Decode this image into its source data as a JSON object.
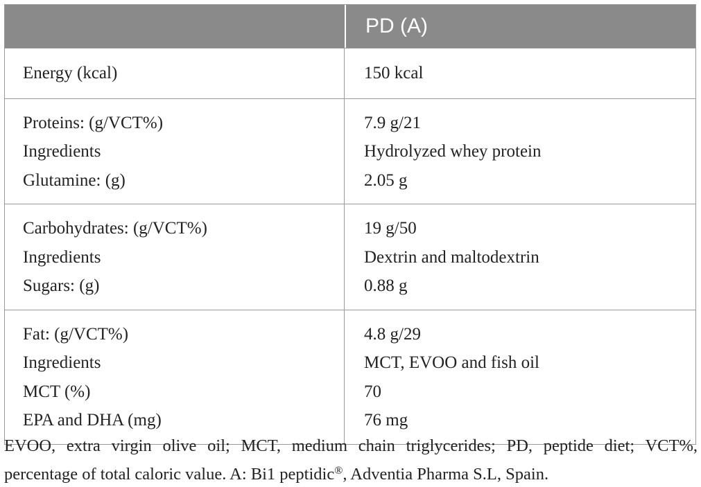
{
  "table": {
    "header": {
      "col1": "",
      "col2": "PD (A)"
    },
    "groups": [
      {
        "rows": [
          {
            "label": "Energy (kcal)",
            "value": "150 kcal"
          }
        ]
      },
      {
        "rows": [
          {
            "label": "Proteins: (g/VCT%)",
            "value": "7.9 g/21"
          },
          {
            "label": "Ingredients",
            "value": "Hydrolyzed whey protein"
          },
          {
            "label": "Glutamine: (g)",
            "value": "2.05 g"
          }
        ]
      },
      {
        "rows": [
          {
            "label": "Carbohydrates: (g/VCT%)",
            "value": "19 g/50"
          },
          {
            "label": "Ingredients",
            "value": "Dextrin and maltodextrin"
          },
          {
            "label": "Sugars: (g)",
            "value": "0.88 g"
          }
        ]
      },
      {
        "rows": [
          {
            "label": "Fat: (g/VCT%)",
            "value": "4.8 g/29"
          },
          {
            "label": "Ingredients",
            "value": "MCT, EVOO and fish oil"
          },
          {
            "label": "MCT (%)",
            "value": "70"
          },
          {
            "label": "EPA and DHA (mg)",
            "value": "76 mg"
          }
        ]
      }
    ]
  },
  "footnote": {
    "line1": "EVOO, extra virgin olive oil; MCT, medium chain triglycerides; PD, peptide diet; VCT%,",
    "line2_before": "percentage of total caloric value. A: Bi1 peptidic",
    "registered_mark": "®",
    "line2_after": ", Adventia Pharma S.L, Spain."
  }
}
